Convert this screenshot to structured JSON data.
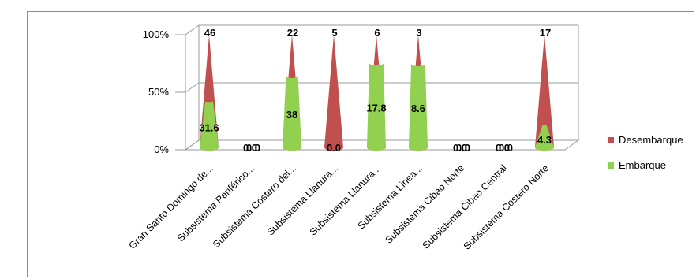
{
  "chart_data": {
    "type": "bar",
    "variant": "100% stacked 3D cone",
    "categories": [
      "Gran Santo Domingo de...",
      "Subsistema Periférico...",
      "Subsistema Costero del...",
      "Subsistema Llanura...",
      "Subsistema Llanura...",
      "Subsistema Linea...",
      "Subsistema Cibao Norte",
      "Subsistema Cibao Central",
      "Subsistema Costero Norte"
    ],
    "series": [
      {
        "name": "Embarque",
        "color": "#92d050",
        "values": [
          31.6,
          0,
          38,
          0,
          17.8,
          8.6,
          0,
          0,
          4.3
        ],
        "labels": [
          "31.6",
          "0.0",
          "38",
          "0.0",
          "17.8",
          "8.6",
          "0.0",
          "0.0",
          "4.3"
        ]
      },
      {
        "name": "Desembarque",
        "color": "#c0504d",
        "values": [
          46,
          0,
          22,
          5,
          6,
          3,
          0,
          0,
          17
        ],
        "labels": [
          "46",
          "0.0",
          "22",
          "5",
          "6",
          "3",
          "0.0",
          "0.0",
          "17"
        ]
      }
    ],
    "y_ticks": [
      "0%",
      "50%",
      "100%"
    ],
    "ylim": [
      0,
      100
    ],
    "grid": true,
    "legend_position": "right"
  }
}
